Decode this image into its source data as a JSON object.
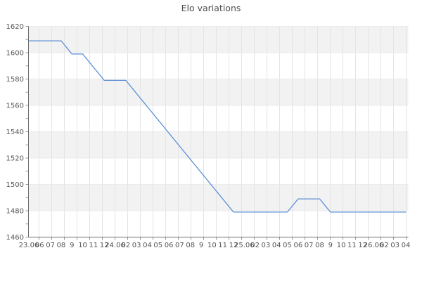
{
  "title": "Elo variations",
  "chart_data": {
    "type": "line",
    "title": "Elo variations",
    "xlabel": "",
    "ylabel": "",
    "ylim": [
      1460,
      1620
    ],
    "y_major_step": 20,
    "y_minor_step": 10,
    "y_tick_labels": [
      "1620",
      "1600",
      "1580",
      "1560",
      "1540",
      "1520",
      "1500",
      "1480",
      "1460"
    ],
    "x_tick_labels": [
      "23.06",
      "06",
      "07",
      "08",
      "9",
      "10",
      "11",
      "12",
      "24.06",
      "02",
      "03",
      "04",
      "05",
      "06",
      "07",
      "08",
      "9",
      "10",
      "11",
      "12",
      "25.06",
      "02",
      "03",
      "04",
      "05",
      "06",
      "07",
      "08",
      "9",
      "10",
      "11",
      "12",
      "26.06",
      "02",
      "03",
      "04"
    ],
    "series": [
      {
        "name": "Elo",
        "color": "#5a8dd6",
        "values": [
          1609,
          1609,
          1609,
          1609,
          1599,
          1599,
          1589,
          1579,
          1579,
          1579,
          1569,
          1559,
          1549,
          1539,
          1529,
          1519,
          1509,
          1499,
          1489,
          1479,
          1479,
          1479,
          1479,
          1479,
          1479,
          1489,
          1489,
          1489,
          1479,
          1479,
          1479,
          1479,
          1479,
          1479,
          1479,
          1479
        ]
      }
    ],
    "legend": "none",
    "grid": true,
    "vertical_gridline_count": 30,
    "colors": {
      "line": "#5a8dd6",
      "band": "#f2f2f2",
      "band_alt": "#ffffff",
      "v_gridline": "#e4e4e4",
      "h_gridline": "#ebebeb",
      "axis": "#6e6e6e",
      "tick": "#9a9a9a",
      "tick_text": "#555555",
      "title_text": "#4d4d4d"
    }
  }
}
